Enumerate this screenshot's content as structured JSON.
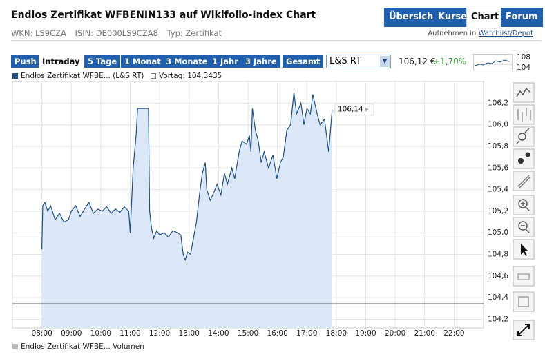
{
  "header": {
    "title": "Endlos Zertifikat WFBENIN133 auf Wikifolio-Index Chart",
    "tabs": [
      "Übersicht",
      "Kurse",
      "Chart",
      "Forum"
    ],
    "info": [
      "WKN: LS9CZA",
      "ISIN: DE000LS9CZA8",
      "Typ: Zertifikat"
    ],
    "watchlist_prefix": "Aufnehmen in",
    "watchlist_link": "Watchlist/Depot"
  },
  "toolbar": {
    "ranges": [
      "Push",
      "Intraday",
      "5 Tage",
      "1 Monat",
      "3 Monate",
      "1 Jahr",
      "3 Jahre",
      "Gesamt"
    ],
    "exchange": "L&S RT",
    "price": "106,12 €",
    "change": "+1,70%",
    "mini_chart_max": 108,
    "mini_chart_min": 104
  },
  "chart_data": {
    "type": "line",
    "x": [
      8.0,
      8.03,
      8.1,
      8.2,
      8.3,
      8.45,
      8.6,
      8.75,
      8.9,
      9.0,
      9.15,
      9.3,
      9.45,
      9.6,
      9.75,
      9.9,
      10.05,
      10.2,
      10.35,
      10.5,
      10.65,
      10.8,
      10.95,
      11.0,
      11.1,
      11.2,
      11.25,
      11.62,
      11.66,
      11.72,
      11.8,
      11.9,
      12.0,
      12.15,
      12.3,
      12.45,
      12.6,
      12.72,
      12.8,
      12.87,
      12.95,
      13.05,
      13.15,
      13.25,
      13.35,
      13.45,
      13.55,
      13.6,
      13.72,
      13.85,
      13.95,
      14.08,
      14.2,
      14.3,
      14.45,
      14.55,
      14.7,
      14.8,
      14.95,
      15.05,
      15.1,
      15.15,
      15.25,
      15.35,
      15.45,
      15.55,
      15.7,
      15.85,
      15.98,
      16.1,
      16.2,
      16.32,
      16.45,
      16.56,
      16.65,
      16.8,
      16.9,
      17.0,
      17.12,
      17.2,
      17.35,
      17.45,
      17.6,
      17.74,
      17.8,
      17.86
    ],
    "series": [
      {
        "name": "Endlos Zertifikat WFBE... (L&S RT)",
        "color": "#1a4f8a",
        "fill": "#dce7f8",
        "values": [
          104.85,
          105.25,
          105.28,
          105.2,
          105.25,
          105.12,
          105.18,
          105.1,
          105.12,
          105.2,
          105.25,
          105.15,
          105.22,
          105.28,
          105.18,
          105.22,
          105.2,
          105.24,
          105.18,
          105.22,
          105.19,
          105.24,
          105.2,
          105.0,
          105.6,
          105.9,
          106.15,
          106.15,
          105.2,
          105.05,
          104.95,
          105.02,
          104.98,
          105.0,
          104.96,
          105.02,
          105.0,
          104.98,
          104.8,
          104.75,
          104.82,
          104.8,
          104.95,
          105.1,
          105.35,
          105.55,
          105.65,
          105.4,
          105.3,
          105.38,
          105.45,
          105.35,
          105.55,
          105.45,
          105.6,
          105.5,
          105.75,
          105.85,
          105.82,
          105.9,
          105.75,
          106.15,
          105.95,
          105.85,
          105.65,
          105.75,
          105.6,
          105.72,
          105.5,
          105.65,
          105.7,
          105.95,
          106.0,
          106.3,
          106.1,
          106.2,
          106.0,
          106.15,
          106.1,
          106.28,
          106.1,
          106.0,
          106.05,
          105.75,
          105.95,
          106.14
        ],
        "end_label": "106,14"
      }
    ],
    "reference_line": {
      "label": "Vortag: 104,3435",
      "value": 104.3435,
      "color": "#555555"
    },
    "volume_legend": "Endlos Zertifikat WFBE... Volumen",
    "xlim": [
      7,
      23
    ],
    "xticks": [
      {
        "value": 8,
        "label": "08:00"
      },
      {
        "value": 9,
        "label": "09:00"
      },
      {
        "value": 10,
        "label": "10:00"
      },
      {
        "value": 11,
        "label": "11:00"
      },
      {
        "value": 12,
        "label": "12:00"
      },
      {
        "value": 13,
        "label": "13:00"
      },
      {
        "value": 14,
        "label": "14:00"
      },
      {
        "value": 15,
        "label": "15:00"
      },
      {
        "value": 16,
        "label": "16:00"
      },
      {
        "value": 17,
        "label": "17:00"
      },
      {
        "value": 18,
        "label": "18:00"
      },
      {
        "value": 19,
        "label": "19:00"
      },
      {
        "value": 20,
        "label": "20:00"
      },
      {
        "value": 21,
        "label": "21:00"
      },
      {
        "value": 22,
        "label": "22:00"
      }
    ],
    "ylim": [
      104.12,
      106.4
    ],
    "yticks": [
      {
        "value": 104.2,
        "label": "104,2"
      },
      {
        "value": 104.4,
        "label": "104,4"
      },
      {
        "value": 104.6,
        "label": "104,6"
      },
      {
        "value": 104.8,
        "label": "104,8"
      },
      {
        "value": 105.0,
        "label": "105,0"
      },
      {
        "value": 105.2,
        "label": "105,2"
      },
      {
        "value": 105.4,
        "label": "105,4"
      },
      {
        "value": 105.6,
        "label": "105,6"
      },
      {
        "value": 105.8,
        "label": "105,8"
      },
      {
        "value": 106.0,
        "label": "106,0"
      },
      {
        "value": 106.2,
        "label": "106,2"
      }
    ],
    "grid": true
  }
}
